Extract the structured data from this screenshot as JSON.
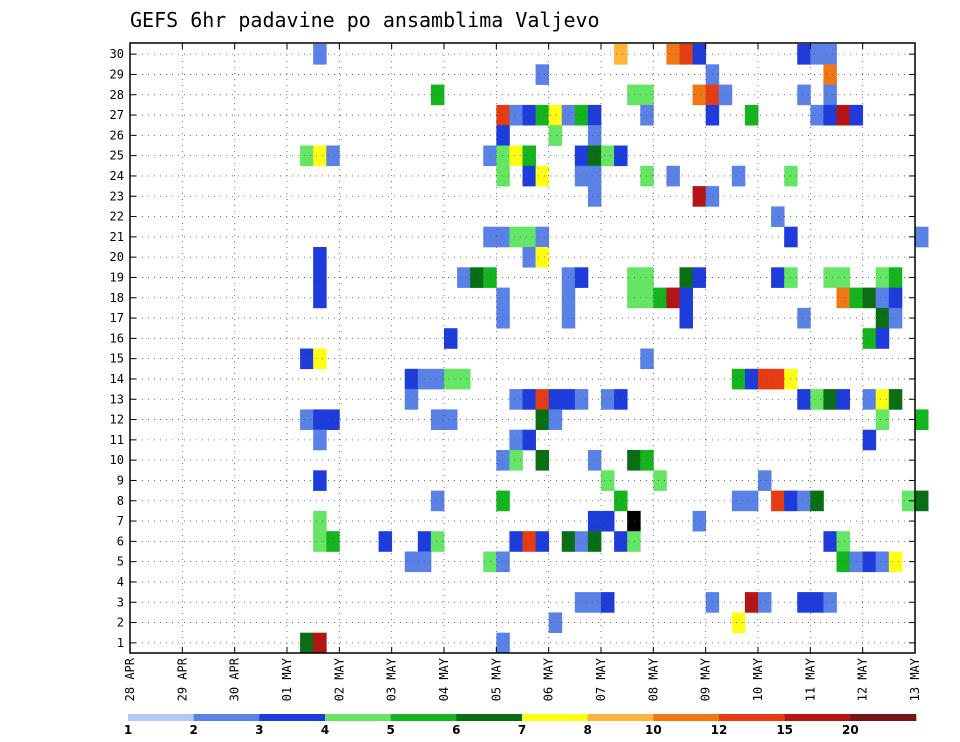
{
  "chart_data": {
    "type": "heatmap",
    "title": "GEFS 6hr padavine po ansamblima Valjevo",
    "x_tick_labels": [
      "28 APR",
      "29 APR",
      "30 APR",
      "01 MAY",
      "02 MAY",
      "03 MAY",
      "04 MAY",
      "05 MAY",
      "06 MAY",
      "07 MAY",
      "08 MAY",
      "09 MAY",
      "10 MAY",
      "11 MAY",
      "12 MAY",
      "13 MAY"
    ],
    "y_tick_labels": [
      "1",
      "2",
      "3",
      "4",
      "5",
      "6",
      "7",
      "8",
      "9",
      "10",
      "11",
      "12",
      "13",
      "14",
      "15",
      "16",
      "17",
      "18",
      "19",
      "20",
      "21",
      "22",
      "23",
      "24",
      "25",
      "26",
      "27",
      "28",
      "29",
      "30"
    ],
    "grid": true,
    "time_steps_per_day": 4,
    "legend": {
      "placement": "bottom",
      "labels": [
        "1",
        "2",
        "3",
        "4",
        "5",
        "6",
        "7",
        "8",
        "10",
        "12",
        "15",
        "20"
      ],
      "colors": [
        "#b4c8f5",
        "#5a82e6",
        "#1e3cdc",
        "#64e664",
        "#14b41e",
        "#0a6e14",
        "#ffff14",
        "#ffb43c",
        "#f07814",
        "#e63c14",
        "#b41414",
        "#781414"
      ]
    },
    "series": [
      {
        "member": 30,
        "cells": [
          [
            14,
            1
          ],
          [
            37,
            7
          ],
          [
            41,
            8
          ],
          [
            42,
            9
          ],
          [
            43,
            2
          ],
          [
            51,
            2
          ],
          [
            52,
            1
          ],
          [
            53,
            1
          ]
        ]
      },
      {
        "member": 29,
        "cells": [
          [
            31,
            1
          ],
          [
            44,
            1
          ],
          [
            53,
            8
          ]
        ]
      },
      {
        "member": 28,
        "cells": [
          [
            23,
            4
          ],
          [
            38,
            3
          ],
          [
            39,
            3
          ],
          [
            43,
            8
          ],
          [
            44,
            9
          ],
          [
            45,
            1
          ],
          [
            51,
            1
          ],
          [
            53,
            1
          ]
        ]
      },
      {
        "member": 27,
        "cells": [
          [
            28,
            9
          ],
          [
            29,
            1
          ],
          [
            30,
            2
          ],
          [
            31,
            4
          ],
          [
            32,
            6
          ],
          [
            33,
            1
          ],
          [
            34,
            4
          ],
          [
            35,
            2
          ],
          [
            39,
            1
          ],
          [
            44,
            2
          ],
          [
            47,
            4
          ],
          [
            52,
            1
          ],
          [
            53,
            2
          ],
          [
            54,
            10
          ],
          [
            55,
            2
          ]
        ]
      },
      {
        "member": 26,
        "cells": [
          [
            28,
            2
          ],
          [
            32,
            3
          ],
          [
            35,
            1
          ]
        ]
      },
      {
        "member": 25,
        "cells": [
          [
            13,
            3
          ],
          [
            14,
            6
          ],
          [
            15,
            1
          ],
          [
            27,
            1
          ],
          [
            28,
            3
          ],
          [
            29,
            6
          ],
          [
            30,
            4
          ],
          [
            34,
            2
          ],
          [
            35,
            5
          ],
          [
            36,
            3
          ],
          [
            37,
            2
          ]
        ]
      },
      {
        "member": 24,
        "cells": [
          [
            28,
            3
          ],
          [
            30,
            2
          ],
          [
            31,
            6
          ],
          [
            34,
            1
          ],
          [
            35,
            1
          ],
          [
            39,
            3
          ],
          [
            41,
            1
          ],
          [
            46,
            1
          ],
          [
            50,
            3
          ]
        ]
      },
      {
        "member": 23,
        "cells": [
          [
            35,
            1
          ],
          [
            43,
            10
          ],
          [
            44,
            1
          ]
        ]
      },
      {
        "member": 22,
        "cells": [
          [
            49,
            1
          ]
        ]
      },
      {
        "member": 21,
        "cells": [
          [
            27,
            1
          ],
          [
            28,
            1
          ],
          [
            29,
            3
          ],
          [
            30,
            3
          ],
          [
            31,
            1
          ],
          [
            50,
            2
          ],
          [
            60,
            1
          ]
        ]
      },
      {
        "member": 20,
        "cells": [
          [
            14,
            2
          ],
          [
            30,
            1
          ],
          [
            31,
            6
          ]
        ]
      },
      {
        "member": 19,
        "cells": [
          [
            14,
            2
          ],
          [
            25,
            1
          ],
          [
            26,
            5
          ],
          [
            27,
            4
          ],
          [
            33,
            1
          ],
          [
            34,
            2
          ],
          [
            38,
            3
          ],
          [
            39,
            3
          ],
          [
            42,
            5
          ],
          [
            43,
            2
          ],
          [
            49,
            2
          ],
          [
            50,
            3
          ],
          [
            53,
            3
          ],
          [
            54,
            3
          ],
          [
            57,
            3
          ],
          [
            58,
            4
          ]
        ]
      },
      {
        "member": 18,
        "cells": [
          [
            14,
            2
          ],
          [
            28,
            1
          ],
          [
            33,
            1
          ],
          [
            38,
            3
          ],
          [
            39,
            3
          ],
          [
            40,
            4
          ],
          [
            41,
            10
          ],
          [
            42,
            2
          ],
          [
            54,
            8
          ],
          [
            55,
            4
          ],
          [
            56,
            5
          ],
          [
            57,
            1
          ],
          [
            58,
            2
          ]
        ]
      },
      {
        "member": 17,
        "cells": [
          [
            28,
            1
          ],
          [
            33,
            1
          ],
          [
            42,
            2
          ],
          [
            51,
            1
          ],
          [
            57,
            5
          ],
          [
            58,
            1
          ]
        ]
      },
      {
        "member": 16,
        "cells": [
          [
            24,
            2
          ],
          [
            56,
            4
          ],
          [
            57,
            2
          ]
        ]
      },
      {
        "member": 15,
        "cells": [
          [
            13,
            2
          ],
          [
            14,
            6
          ],
          [
            39,
            1
          ]
        ]
      },
      {
        "member": 14,
        "cells": [
          [
            21,
            2
          ],
          [
            22,
            1
          ],
          [
            23,
            1
          ],
          [
            24,
            3
          ],
          [
            25,
            3
          ],
          [
            46,
            4
          ],
          [
            47,
            2
          ],
          [
            48,
            9
          ],
          [
            49,
            9
          ],
          [
            50,
            6
          ]
        ]
      },
      {
        "member": 13,
        "cells": [
          [
            21,
            1
          ],
          [
            29,
            1
          ],
          [
            30,
            2
          ],
          [
            31,
            9
          ],
          [
            32,
            2
          ],
          [
            33,
            2
          ],
          [
            34,
            1
          ],
          [
            36,
            1
          ],
          [
            37,
            2
          ],
          [
            51,
            2
          ],
          [
            52,
            3
          ],
          [
            53,
            5
          ],
          [
            54,
            2
          ],
          [
            56,
            1
          ],
          [
            57,
            6
          ],
          [
            58,
            5
          ]
        ]
      },
      {
        "member": 12,
        "cells": [
          [
            13,
            1
          ],
          [
            14,
            2
          ],
          [
            15,
            2
          ],
          [
            23,
            1
          ],
          [
            24,
            1
          ],
          [
            31,
            5
          ],
          [
            32,
            1
          ],
          [
            57,
            3
          ],
          [
            60,
            4
          ]
        ]
      },
      {
        "member": 11,
        "cells": [
          [
            14,
            1
          ],
          [
            29,
            1
          ],
          [
            30,
            2
          ],
          [
            56,
            2
          ]
        ]
      },
      {
        "member": 10,
        "cells": [
          [
            28,
            1
          ],
          [
            29,
            3
          ],
          [
            31,
            5
          ],
          [
            35,
            1
          ],
          [
            38,
            5
          ],
          [
            39,
            4
          ]
        ]
      },
      {
        "member": 9,
        "cells": [
          [
            14,
            2
          ],
          [
            36,
            3
          ],
          [
            40,
            3
          ],
          [
            48,
            1
          ]
        ]
      },
      {
        "member": 8,
        "cells": [
          [
            23,
            1
          ],
          [
            28,
            4
          ],
          [
            37,
            4
          ],
          [
            46,
            1
          ],
          [
            47,
            1
          ],
          [
            49,
            9
          ],
          [
            50,
            2
          ],
          [
            51,
            1
          ],
          [
            52,
            5
          ],
          [
            59,
            3
          ],
          [
            60,
            5
          ]
        ]
      },
      {
        "member": 7,
        "cells": [
          [
            14,
            3
          ],
          [
            35,
            2
          ],
          [
            36,
            2
          ],
          [
            38,
            12
          ],
          [
            43,
            1
          ]
        ]
      },
      {
        "member": 6,
        "cells": [
          [
            14,
            3
          ],
          [
            15,
            4
          ],
          [
            19,
            2
          ],
          [
            22,
            2
          ],
          [
            23,
            3
          ],
          [
            29,
            2
          ],
          [
            30,
            9
          ],
          [
            31,
            2
          ],
          [
            33,
            5
          ],
          [
            34,
            1
          ],
          [
            35,
            5
          ],
          [
            37,
            2
          ],
          [
            38,
            3
          ],
          [
            53,
            2
          ],
          [
            54,
            3
          ]
        ]
      },
      {
        "member": 5,
        "cells": [
          [
            21,
            1
          ],
          [
            22,
            1
          ],
          [
            27,
            3
          ],
          [
            28,
            1
          ],
          [
            54,
            4
          ],
          [
            55,
            1
          ],
          [
            56,
            2
          ],
          [
            57,
            1
          ],
          [
            58,
            6
          ]
        ]
      },
      {
        "member": 3,
        "cells": [
          [
            34,
            1
          ],
          [
            35,
            1
          ],
          [
            36,
            2
          ],
          [
            44,
            1
          ],
          [
            47,
            10
          ],
          [
            48,
            1
          ],
          [
            51,
            2
          ],
          [
            52,
            2
          ],
          [
            53,
            1
          ]
        ]
      },
      {
        "member": 2,
        "cells": [
          [
            32,
            1
          ],
          [
            46,
            6
          ]
        ]
      },
      {
        "member": 1,
        "cells": [
          [
            13,
            5
          ],
          [
            14,
            10
          ],
          [
            28,
            1
          ]
        ]
      }
    ]
  }
}
